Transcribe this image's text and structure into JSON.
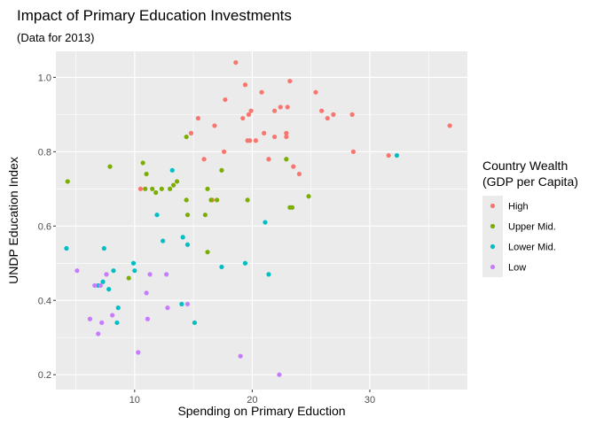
{
  "chart_data": {
    "type": "scatter",
    "title": "Impact of Primary Education Investments",
    "subtitle": "(Data for 2013)",
    "xlabel": "Spending on Primary Eduction",
    "ylabel": "UNDP Education Index",
    "xlim": [
      3.3,
      38.3
    ],
    "ylim": [
      0.16,
      1.07
    ],
    "x_ticks": [
      10,
      20,
      30
    ],
    "y_ticks": [
      0.2,
      0.4,
      0.6,
      0.8,
      1.0
    ],
    "x_tick_labels": [
      "10",
      "20",
      "30"
    ],
    "y_tick_labels": [
      "0.2",
      "0.4",
      "0.6",
      "0.8",
      "1.0"
    ],
    "grid": true,
    "legend": {
      "title_line1": "Country Wealth",
      "title_line2": "(GDP per Capita)",
      "position": "right"
    },
    "series": [
      {
        "name": "High",
        "color": "#F8766D",
        "points": [
          [
            18.6,
            1.04
          ],
          [
            19.4,
            0.98
          ],
          [
            21.9,
            0.91
          ],
          [
            22.4,
            0.92
          ],
          [
            23.0,
            0.92
          ],
          [
            23.2,
            0.99
          ],
          [
            25.4,
            0.96
          ],
          [
            25.9,
            0.91
          ],
          [
            26.4,
            0.89
          ],
          [
            26.9,
            0.9
          ],
          [
            28.5,
            0.9
          ],
          [
            36.8,
            0.87
          ],
          [
            31.6,
            0.79
          ],
          [
            28.6,
            0.8
          ],
          [
            24.0,
            0.74
          ],
          [
            23.5,
            0.76
          ],
          [
            21.4,
            0.78
          ],
          [
            22.9,
            0.84
          ],
          [
            22.9,
            0.85
          ],
          [
            21.9,
            0.84
          ],
          [
            21.0,
            0.85
          ],
          [
            20.3,
            0.83
          ],
          [
            19.8,
            0.83
          ],
          [
            19.6,
            0.83
          ],
          [
            19.9,
            0.91
          ],
          [
            19.2,
            0.89
          ],
          [
            19.7,
            0.9
          ],
          [
            20.8,
            0.96
          ],
          [
            17.7,
            0.94
          ],
          [
            16.8,
            0.87
          ],
          [
            15.4,
            0.89
          ],
          [
            14.8,
            0.85
          ],
          [
            17.6,
            0.8
          ],
          [
            15.9,
            0.78
          ],
          [
            16.6,
            0.67
          ],
          [
            10.5,
            0.7
          ]
        ]
      },
      {
        "name": "Upper Mid.",
        "color": "#7CAE00",
        "points": [
          [
            4.3,
            0.72
          ],
          [
            7.9,
            0.76
          ],
          [
            10.7,
            0.77
          ],
          [
            11.0,
            0.74
          ],
          [
            10.9,
            0.7
          ],
          [
            11.5,
            0.7
          ],
          [
            11.8,
            0.69
          ],
          [
            12.3,
            0.7
          ],
          [
            13.0,
            0.7
          ],
          [
            13.3,
            0.71
          ],
          [
            13.6,
            0.72
          ],
          [
            14.4,
            0.84
          ],
          [
            14.4,
            0.67
          ],
          [
            14.5,
            0.63
          ],
          [
            16.0,
            0.63
          ],
          [
            16.2,
            0.7
          ],
          [
            16.5,
            0.67
          ],
          [
            17.0,
            0.67
          ],
          [
            17.4,
            0.75
          ],
          [
            19.6,
            0.67
          ],
          [
            16.2,
            0.53
          ],
          [
            9.5,
            0.46
          ],
          [
            22.9,
            0.78
          ],
          [
            23.2,
            0.65
          ],
          [
            23.4,
            0.65
          ],
          [
            24.8,
            0.68
          ]
        ]
      },
      {
        "name": "Lower Mid.",
        "color": "#00BFC4",
        "points": [
          [
            4.2,
            0.54
          ],
          [
            7.4,
            0.54
          ],
          [
            8.2,
            0.48
          ],
          [
            7.8,
            0.43
          ],
          [
            6.9,
            0.44
          ],
          [
            7.3,
            0.45
          ],
          [
            8.6,
            0.38
          ],
          [
            8.5,
            0.34
          ],
          [
            9.9,
            0.5
          ],
          [
            10.0,
            0.48
          ],
          [
            11.9,
            0.63
          ],
          [
            13.2,
            0.75
          ],
          [
            12.4,
            0.56
          ],
          [
            14.1,
            0.57
          ],
          [
            14.5,
            0.55
          ],
          [
            14.0,
            0.39
          ],
          [
            15.1,
            0.34
          ],
          [
            17.4,
            0.49
          ],
          [
            19.4,
            0.5
          ],
          [
            21.1,
            0.61
          ],
          [
            21.4,
            0.47
          ],
          [
            32.3,
            0.79
          ]
        ]
      },
      {
        "name": "Low",
        "color": "#C77CFF",
        "points": [
          [
            5.1,
            0.48
          ],
          [
            6.6,
            0.44
          ],
          [
            7.1,
            0.44
          ],
          [
            6.2,
            0.35
          ],
          [
            7.2,
            0.34
          ],
          [
            6.9,
            0.31
          ],
          [
            7.6,
            0.47
          ],
          [
            8.1,
            0.36
          ],
          [
            10.3,
            0.26
          ],
          [
            11.1,
            0.35
          ],
          [
            11.3,
            0.47
          ],
          [
            11.0,
            0.42
          ],
          [
            12.7,
            0.47
          ],
          [
            12.8,
            0.38
          ],
          [
            14.5,
            0.39
          ],
          [
            19.0,
            0.25
          ],
          [
            22.3,
            0.2
          ]
        ]
      }
    ]
  }
}
